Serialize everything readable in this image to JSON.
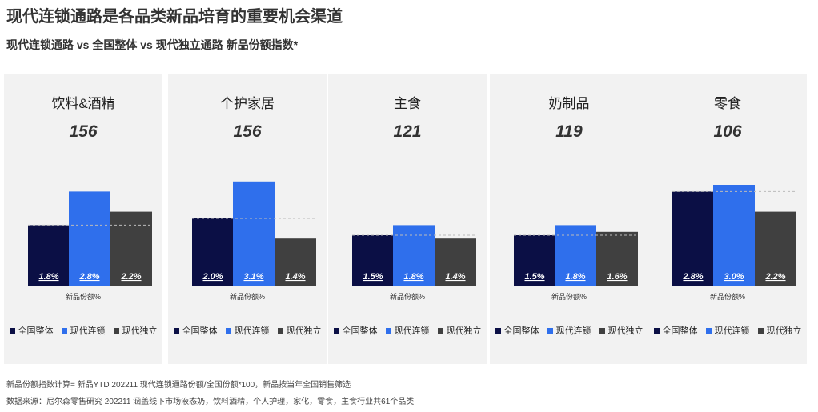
{
  "title": "现代连锁通路是各品类新品培育的重要机会渠道",
  "subtitle": "现代连锁通路 vs 全国整体 vs 现代独立通路  新品份额指数*",
  "colors": {
    "national": "#0b0f45",
    "modern_chain": "#2f6fec",
    "modern_independent": "#404040"
  },
  "legend": [
    "全国整体",
    "现代连锁",
    "现代独立"
  ],
  "axis_label": "新品份额%",
  "chart_data": [
    {
      "type": "bar",
      "title": "饮料&酒精",
      "index": "156",
      "series": [
        {
          "name": "全国整体",
          "value": 1.8,
          "label": "1.8%"
        },
        {
          "name": "现代连锁",
          "value": 2.8,
          "label": "2.8%"
        },
        {
          "name": "现代独立",
          "value": 2.2,
          "label": "2.2%"
        }
      ],
      "xlabel": "新品份额%",
      "ylim": [
        0,
        3.2
      ]
    },
    {
      "type": "bar",
      "title": "个护家居",
      "index": "156",
      "series": [
        {
          "name": "全国整体",
          "value": 2.0,
          "label": "2.0%"
        },
        {
          "name": "现代连锁",
          "value": 3.1,
          "label": "3.1%"
        },
        {
          "name": "现代独立",
          "value": 1.4,
          "label": "1.4%"
        }
      ],
      "xlabel": "新品份额%",
      "ylim": [
        0,
        3.2
      ]
    },
    {
      "type": "bar",
      "title": "主食",
      "index": "121",
      "series": [
        {
          "name": "全国整体",
          "value": 1.5,
          "label": "1.5%"
        },
        {
          "name": "现代连锁",
          "value": 1.8,
          "label": "1.8%"
        },
        {
          "name": "现代独立",
          "value": 1.4,
          "label": "1.4%"
        }
      ],
      "xlabel": "新品份额%",
      "ylim": [
        0,
        3.2
      ]
    },
    {
      "type": "bar",
      "title": "奶制品",
      "index": "119",
      "series": [
        {
          "name": "全国整体",
          "value": 1.5,
          "label": "1.5%"
        },
        {
          "name": "现代连锁",
          "value": 1.8,
          "label": "1.8%"
        },
        {
          "name": "现代独立",
          "value": 1.6,
          "label": "1.6%"
        }
      ],
      "xlabel": "新品份额%",
      "ylim": [
        0,
        3.2
      ]
    },
    {
      "type": "bar",
      "title": "零食",
      "index": "106",
      "series": [
        {
          "name": "全国整体",
          "value": 2.8,
          "label": "2.8%"
        },
        {
          "name": "现代连锁",
          "value": 3.0,
          "label": "3.0%"
        },
        {
          "name": "现代独立",
          "value": 2.2,
          "label": "2.2%"
        }
      ],
      "xlabel": "新品份额%",
      "ylim": [
        0,
        3.2
      ]
    }
  ],
  "footnotes": [
    "新品份额指数计算= 新品YTD 202211 现代连锁通路份额/全国份额*100，新品按当年全国销售筛选",
    "数据来源：尼尔森零售研究 202211 涵盖线下市场液态奶，饮料酒精，个人护理，家化，零食，主食行业共61个品类"
  ]
}
